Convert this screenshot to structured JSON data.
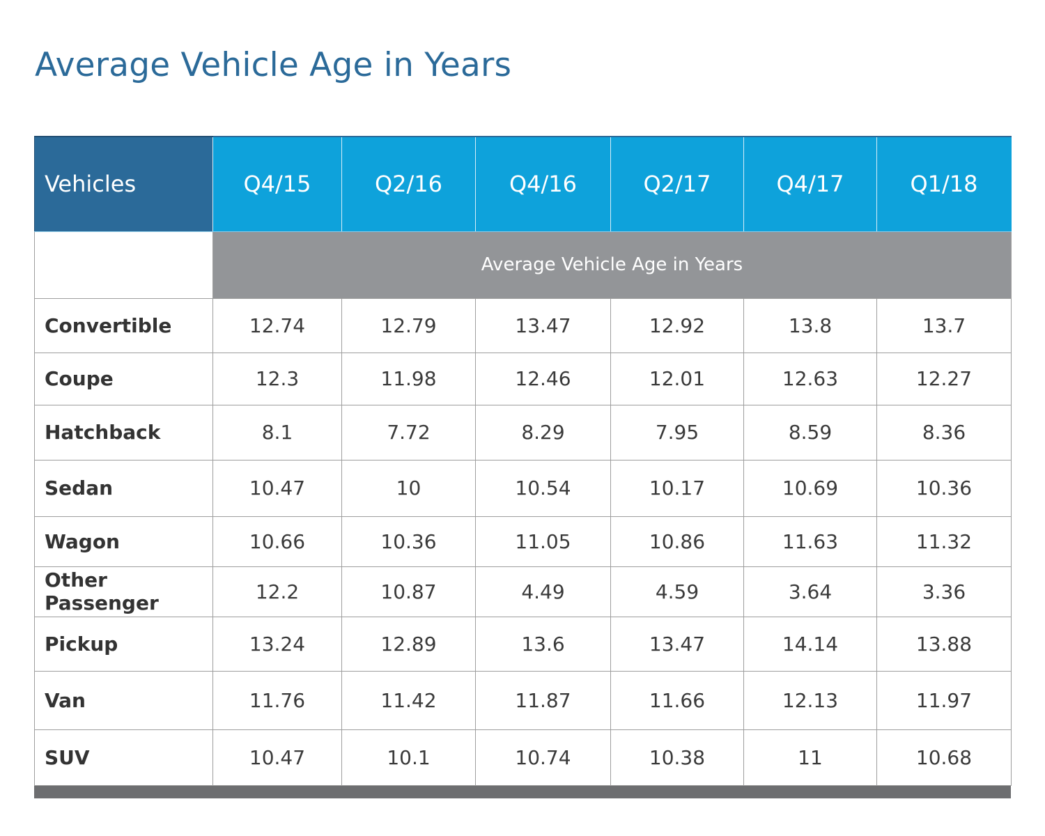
{
  "title": "Average Vehicle Age in Years",
  "colors": {
    "title": "#2b6a99",
    "header_dark": "#2b6a99",
    "header_light": "#0ea2db",
    "band": "#939598",
    "footer": "#6d6e70"
  },
  "chart_data": {
    "type": "table",
    "title": "Average Vehicle Age in Years",
    "corner_label": "Vehicles",
    "columns": [
      "Q4/15",
      "Q2/16",
      "Q4/16",
      "Q2/17",
      "Q4/17",
      "Q1/18"
    ],
    "band_label": "Average Vehicle Age in Years",
    "rows": [
      {
        "label": "Convertible",
        "values": [
          "12.74",
          "12.79",
          "13.47",
          "12.92",
          "13.8",
          "13.7"
        ]
      },
      {
        "label": "Coupe",
        "values": [
          "12.3",
          "11.98",
          "12.46",
          "12.01",
          "12.63",
          "12.27"
        ]
      },
      {
        "label": "Hatchback",
        "values": [
          "8.1",
          "7.72",
          "8.29",
          "7.95",
          "8.59",
          "8.36"
        ]
      },
      {
        "label": "Sedan",
        "values": [
          "10.47",
          "10",
          "10.54",
          "10.17",
          "10.69",
          "10.36"
        ]
      },
      {
        "label": "Wagon",
        "values": [
          "10.66",
          "10.36",
          "11.05",
          "10.86",
          "11.63",
          "11.32"
        ]
      },
      {
        "label": "Other Passenger",
        "values": [
          "12.2",
          "10.87",
          "4.49",
          "4.59",
          "3.64",
          "3.36"
        ]
      },
      {
        "label": "Pickup",
        "values": [
          "13.24",
          "12.89",
          "13.6",
          "13.47",
          "14.14",
          "13.88"
        ]
      },
      {
        "label": "Van",
        "values": [
          "11.76",
          "11.42",
          "11.87",
          "11.66",
          "12.13",
          "11.97"
        ]
      },
      {
        "label": "SUV",
        "values": [
          "10.47",
          "10.1",
          "10.74",
          "10.38",
          "11",
          "10.68"
        ]
      }
    ]
  }
}
